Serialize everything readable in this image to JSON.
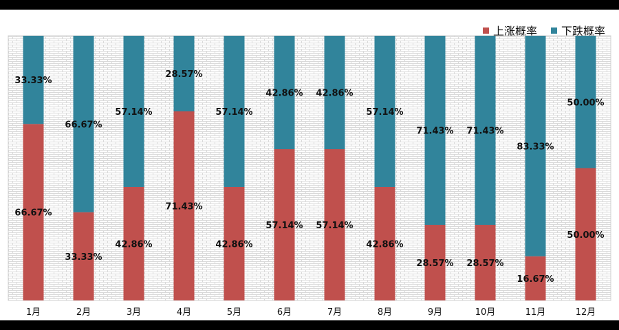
{
  "chart_data": {
    "type": "bar",
    "stacked": true,
    "categories": [
      "1月",
      "2月",
      "3月",
      "4月",
      "5月",
      "6月",
      "7月",
      "8月",
      "9月",
      "10月",
      "11月",
      "12月"
    ],
    "series": [
      {
        "name": "上涨概率",
        "color": "#c0504d",
        "values": [
          66.67,
          33.33,
          42.86,
          71.43,
          42.86,
          57.14,
          57.14,
          42.86,
          28.57,
          28.57,
          16.67,
          50.0
        ],
        "labels": [
          "66.67%",
          "33.33%",
          "42.86%",
          "71.43%",
          "42.86%",
          "57.14%",
          "57.14%",
          "42.86%",
          "28.57%",
          "28.57%",
          "16.67%",
          "50.00%"
        ]
      },
      {
        "name": "下跌概率",
        "color": "#31849b",
        "values": [
          33.33,
          66.67,
          57.14,
          28.57,
          57.14,
          42.86,
          42.86,
          57.14,
          71.43,
          71.43,
          83.33,
          50.0
        ],
        "labels": [
          "33.33%",
          "66.67%",
          "57.14%",
          "28.57%",
          "57.14%",
          "42.86%",
          "42.86%",
          "57.14%",
          "71.43%",
          "71.43%",
          "83.33%",
          "50.00%"
        ]
      }
    ],
    "ylim": [
      0,
      100
    ],
    "legend": "top-right"
  }
}
